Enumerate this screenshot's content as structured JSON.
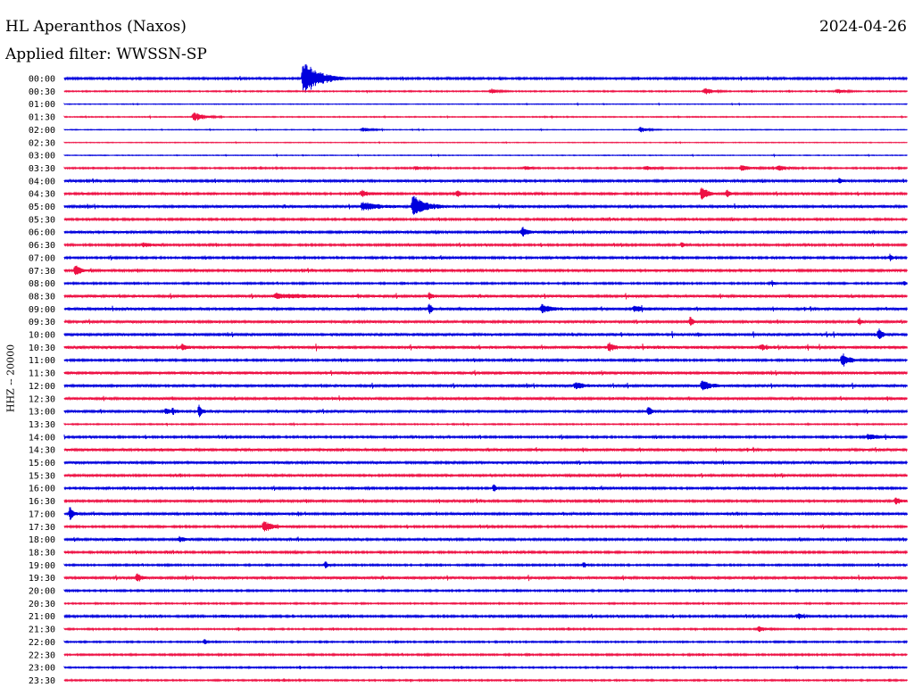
{
  "header": {
    "station": "HL Aperanthos (Naxos)",
    "date": "2024-04-26",
    "filter": "Applied filter: WWSSN-SP",
    "channel": "HHZ -- 20000"
  },
  "colors": {
    "even_hour_trace": "#0000dd",
    "half_hour_trace": "#ee1144",
    "text": "#000000",
    "background": "#ffffff"
  },
  "chart_data": {
    "type": "line",
    "title": "HL Aperanthos (Naxos)",
    "subtitle": "Applied filter: WWSSN-SP",
    "ylabel": "HHZ -- 20000",
    "xlabel": "",
    "x_unit": "minutes within row",
    "xlim": [
      0,
      30
    ],
    "grid": false,
    "legend": "none",
    "rows": [
      "00:00",
      "00:30",
      "01:00",
      "01:30",
      "02:00",
      "02:30",
      "03:00",
      "03:30",
      "04:00",
      "04:30",
      "05:00",
      "05:30",
      "06:00",
      "06:30",
      "07:00",
      "07:30",
      "08:00",
      "08:30",
      "09:00",
      "09:30",
      "10:00",
      "10:30",
      "11:00",
      "11:30",
      "12:00",
      "12:30",
      "13:00",
      "13:30",
      "14:00",
      "14:30",
      "15:00",
      "15:30",
      "16:00",
      "16:30",
      "17:00",
      "17:30",
      "18:00",
      "18:30",
      "19:00",
      "19:30",
      "20:00",
      "20:30",
      "21:00",
      "21:30",
      "22:00",
      "22:30",
      "23:00",
      "23:30"
    ],
    "baseline_noise": [
      0.8,
      0.5,
      0.3,
      0.4,
      0.3,
      0.3,
      0.3,
      0.6,
      0.9,
      0.8,
      1.0,
      0.8,
      0.9,
      0.8,
      0.8,
      0.9,
      0.7,
      1.0,
      1.0,
      1.0,
      1.2,
      1.2,
      0.8,
      1.2,
      1.0,
      1.0,
      1.0,
      0.5,
      0.8,
      1.0,
      1.0,
      0.9,
      0.8,
      0.9,
      0.9,
      0.8,
      0.9,
      0.8,
      0.7,
      1.0,
      0.7,
      0.6,
      0.8,
      0.6,
      0.6,
      0.7,
      0.6,
      0.6
    ],
    "events": [
      {
        "row": "00:00",
        "minute": 8.5,
        "amplitude": 22,
        "duration_min": 1.5
      },
      {
        "row": "00:30",
        "minute": 15.2,
        "amplitude": 3,
        "duration_min": 0.6
      },
      {
        "row": "00:30",
        "minute": 22.8,
        "amplitude": 4,
        "duration_min": 0.8
      },
      {
        "row": "00:30",
        "minute": 27.5,
        "amplitude": 3,
        "duration_min": 0.7
      },
      {
        "row": "01:30",
        "minute": 4.6,
        "amplitude": 6,
        "duration_min": 1.0
      },
      {
        "row": "02:00",
        "minute": 10.6,
        "amplitude": 2.5,
        "duration_min": 0.8
      },
      {
        "row": "02:00",
        "minute": 20.5,
        "amplitude": 3,
        "duration_min": 0.8
      },
      {
        "row": "03:30",
        "minute": 12.5,
        "amplitude": 2,
        "duration_min": 0.7
      },
      {
        "row": "03:30",
        "minute": 16.4,
        "amplitude": 2.5,
        "duration_min": 0.5
      },
      {
        "row": "03:30",
        "minute": 20.7,
        "amplitude": 2.5,
        "duration_min": 0.7
      },
      {
        "row": "03:30",
        "minute": 24.1,
        "amplitude": 3,
        "duration_min": 1.2
      },
      {
        "row": "03:30",
        "minute": 25.4,
        "amplitude": 3,
        "duration_min": 1.0
      },
      {
        "row": "04:00",
        "minute": 27.6,
        "amplitude": 4,
        "duration_min": 0.2
      },
      {
        "row": "04:30",
        "minute": 10.6,
        "amplitude": 3,
        "duration_min": 1.2
      },
      {
        "row": "04:30",
        "minute": 14.0,
        "amplitude": 5,
        "duration_min": 0.2
      },
      {
        "row": "04:30",
        "minute": 22.7,
        "amplitude": 10,
        "duration_min": 0.5
      },
      {
        "row": "04:30",
        "minute": 23.6,
        "amplitude": 5,
        "duration_min": 0.3
      },
      {
        "row": "05:00",
        "minute": 10.6,
        "amplitude": 5,
        "duration_min": 1.5
      },
      {
        "row": "05:00",
        "minute": 12.4,
        "amplitude": 13,
        "duration_min": 1.2
      },
      {
        "row": "06:00",
        "minute": 16.3,
        "amplitude": 6,
        "duration_min": 0.6
      },
      {
        "row": "06:30",
        "minute": 2.8,
        "amplitude": 2.5,
        "duration_min": 1.0
      },
      {
        "row": "06:30",
        "minute": 22.0,
        "amplitude": 4,
        "duration_min": 0.2
      },
      {
        "row": "07:00",
        "minute": 29.4,
        "amplitude": 4,
        "duration_min": 0.3
      },
      {
        "row": "07:30",
        "minute": 0.4,
        "amplitude": 8,
        "duration_min": 0.4
      },
      {
        "row": "08:00",
        "minute": 25.2,
        "amplitude": 3,
        "duration_min": 0.2
      },
      {
        "row": "08:00",
        "minute": 29.9,
        "amplitude": 3,
        "duration_min": 0.2
      },
      {
        "row": "08:30",
        "minute": 7.5,
        "amplitude": 2.5,
        "duration_min": 4.0
      },
      {
        "row": "08:30",
        "minute": 13.0,
        "amplitude": 4,
        "duration_min": 0.3
      },
      {
        "row": "09:00",
        "minute": 13.0,
        "amplitude": 8,
        "duration_min": 0.2
      },
      {
        "row": "09:00",
        "minute": 17.0,
        "amplitude": 5,
        "duration_min": 1.0
      },
      {
        "row": "09:00",
        "minute": 20.3,
        "amplitude": 4,
        "duration_min": 0.8
      },
      {
        "row": "09:30",
        "minute": 22.3,
        "amplitude": 7,
        "duration_min": 0.2
      },
      {
        "row": "09:30",
        "minute": 28.3,
        "amplitude": 5,
        "duration_min": 0.2
      },
      {
        "row": "10:00",
        "minute": 29.0,
        "amplitude": 7,
        "duration_min": 0.3
      },
      {
        "row": "10:30",
        "minute": 4.2,
        "amplitude": 3,
        "duration_min": 0.6
      },
      {
        "row": "10:30",
        "minute": 19.4,
        "amplitude": 7,
        "duration_min": 0.3
      },
      {
        "row": "10:30",
        "minute": 24.8,
        "amplitude": 3,
        "duration_min": 0.5
      },
      {
        "row": "11:00",
        "minute": 27.7,
        "amplitude": 9,
        "duration_min": 0.6
      },
      {
        "row": "12:00",
        "minute": 18.2,
        "amplitude": 4,
        "duration_min": 0.8
      },
      {
        "row": "12:00",
        "minute": 22.7,
        "amplitude": 7,
        "duration_min": 0.8
      },
      {
        "row": "13:00",
        "minute": 3.6,
        "amplitude": 3,
        "duration_min": 1.0
      },
      {
        "row": "13:00",
        "minute": 4.8,
        "amplitude": 7,
        "duration_min": 0.3
      },
      {
        "row": "13:00",
        "minute": 20.8,
        "amplitude": 8,
        "duration_min": 0.3
      },
      {
        "row": "14:00",
        "minute": 28.6,
        "amplitude": 3,
        "duration_min": 1.5
      },
      {
        "row": "16:00",
        "minute": 15.3,
        "amplitude": 5,
        "duration_min": 0.2
      },
      {
        "row": "16:30",
        "minute": 29.6,
        "amplitude": 4,
        "duration_min": 0.5
      },
      {
        "row": "17:00",
        "minute": 0.2,
        "amplitude": 8,
        "duration_min": 0.4
      },
      {
        "row": "17:30",
        "minute": 7.1,
        "amplitude": 7,
        "duration_min": 0.8
      },
      {
        "row": "18:00",
        "minute": 1.8,
        "amplitude": 2,
        "duration_min": 0.5
      },
      {
        "row": "18:00",
        "minute": 4.1,
        "amplitude": 3,
        "duration_min": 0.6
      },
      {
        "row": "19:00",
        "minute": 9.3,
        "amplitude": 5,
        "duration_min": 0.2
      },
      {
        "row": "19:00",
        "minute": 18.5,
        "amplitude": 5,
        "duration_min": 0.2
      },
      {
        "row": "19:30",
        "minute": 2.6,
        "amplitude": 6,
        "duration_min": 0.3
      },
      {
        "row": "21:00",
        "minute": 5.6,
        "amplitude": 2,
        "duration_min": 0.8
      },
      {
        "row": "21:00",
        "minute": 26.1,
        "amplitude": 3,
        "duration_min": 0.6
      },
      {
        "row": "21:30",
        "minute": 24.7,
        "amplitude": 3,
        "duration_min": 0.8
      },
      {
        "row": "22:00",
        "minute": 5.0,
        "amplitude": 3,
        "duration_min": 0.2
      }
    ]
  }
}
